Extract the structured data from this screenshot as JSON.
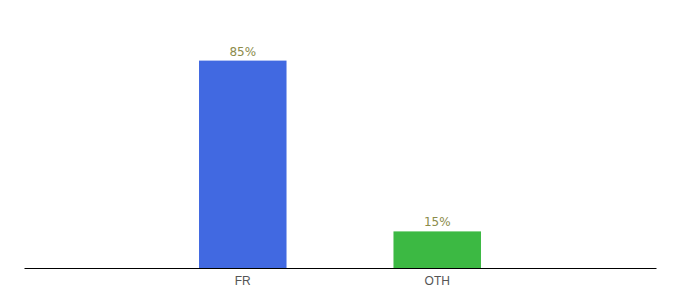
{
  "chart_data": {
    "type": "bar",
    "categories": [
      "FR",
      "OTH"
    ],
    "values": [
      85,
      15
    ],
    "value_labels": [
      "85%",
      "15%"
    ],
    "colors": [
      "#4169E1",
      "#3CB943"
    ],
    "ylim": [
      0,
      100
    ],
    "data_labels": true,
    "tick_labels": "x",
    "grid": false
  }
}
